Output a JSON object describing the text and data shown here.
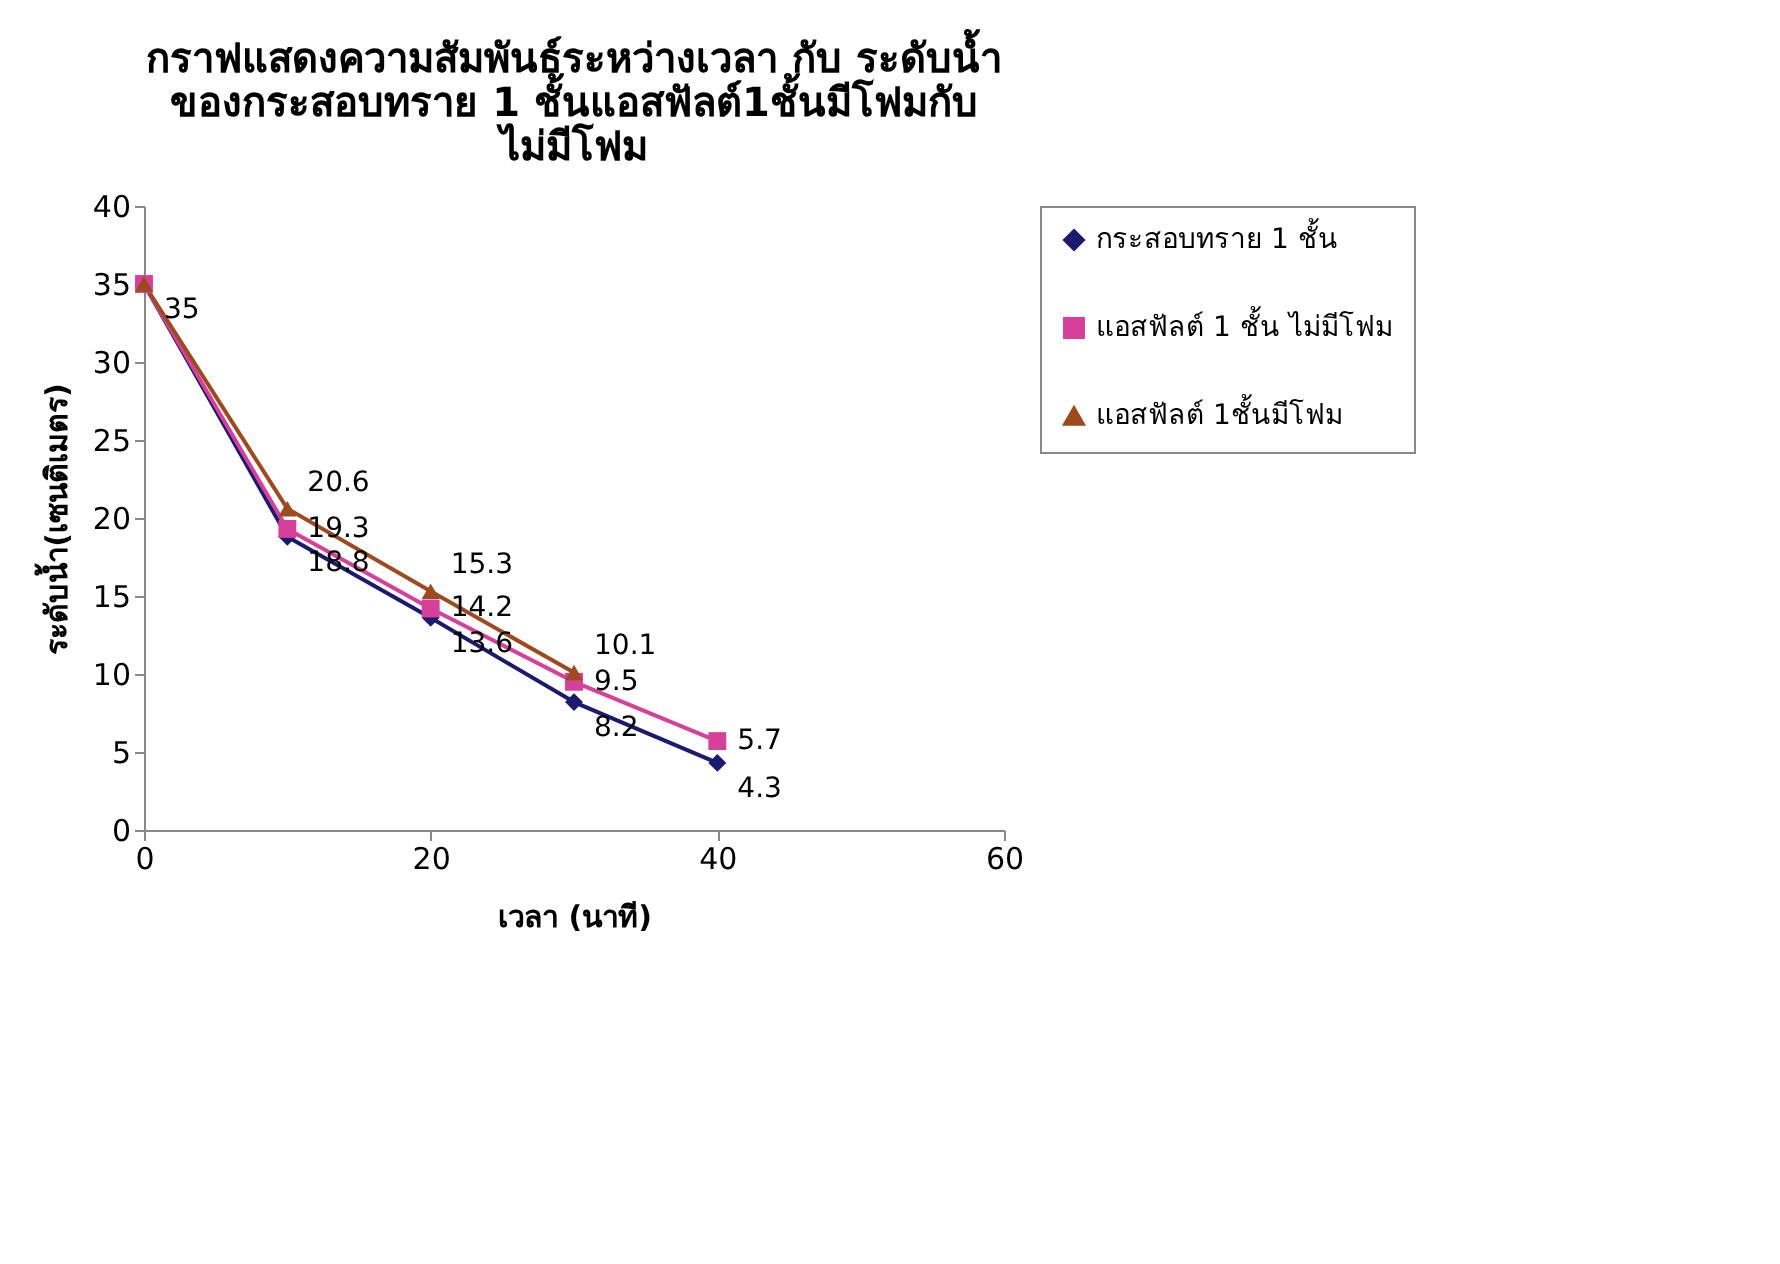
{
  "chart_data": {
    "type": "line",
    "title": "กราฟแสดงความสัมพันธ์ระหว่างเวลา กับ ระดับน้ำ\nของกระสอบทราย 1 ชั้นแอสฟัลต์1ชั้นมีโฟมกับ\nไม่มีโฟม",
    "xlabel": "เวลา (นาที)",
    "ylabel": "ระดับน้ำ(เซนติเมตร)",
    "xlim": [
      0,
      60
    ],
    "xticks": [
      0,
      20,
      40,
      60
    ],
    "ylim": [
      0,
      40
    ],
    "yticks": [
      0,
      5,
      10,
      15,
      20,
      25,
      30,
      35,
      40
    ],
    "grid": false,
    "legend": "right",
    "series": [
      {
        "name": "กระสอบทราย 1 ชั้น",
        "color": "#1a1a6e",
        "marker": "diamond",
        "x": [
          0,
          10,
          20,
          30,
          40
        ],
        "values": [
          35,
          18.8,
          13.6,
          8.2,
          4.3
        ],
        "value_labels": [
          "35",
          "18.8",
          "13.6",
          "8.2",
          "4.3"
        ]
      },
      {
        "name": "แอสฟัลต์ 1 ชั้น ไม่มีโฟม",
        "color": "#d6409a",
        "marker": "square",
        "x": [
          0,
          10,
          20,
          30,
          40
        ],
        "values": [
          35,
          19.3,
          14.2,
          9.5,
          5.7
        ],
        "value_labels": [
          null,
          "19.3",
          "14.2",
          "9.5",
          "5.7"
        ]
      },
      {
        "name": "แอสฟัลต์ 1ชั้นมีโฟม",
        "color": "#9c4a1e",
        "marker": "triangle",
        "x": [
          0,
          10,
          20,
          30
        ],
        "values": [
          35,
          20.6,
          15.3,
          10.1
        ],
        "value_labels": [
          null,
          "20.6",
          "15.3",
          "10.1"
        ]
      }
    ]
  }
}
